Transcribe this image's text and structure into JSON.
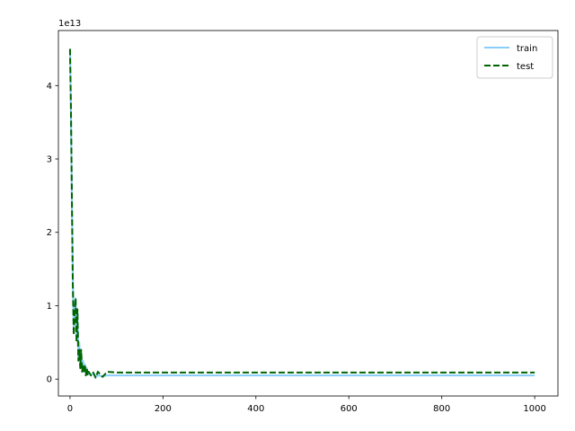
{
  "chart_data": {
    "type": "line",
    "title": "",
    "xlabel": "",
    "ylabel": "",
    "y_offset_label": "1e13",
    "y_scale": 10000000000000.0,
    "xlim": [
      -25,
      1050
    ],
    "ylim": [
      -2300000000000.0,
      47500000000000.0
    ],
    "x_ticks": [
      0,
      200,
      400,
      600,
      800,
      1000
    ],
    "x_tick_labels": [
      "0",
      "200",
      "400",
      "600",
      "800",
      "1000"
    ],
    "y_ticks": [
      0,
      10000000000000.0,
      20000000000000.0,
      30000000000000.0,
      40000000000000.0
    ],
    "y_tick_labels": [
      "0",
      "1",
      "2",
      "3",
      "4"
    ],
    "grid": false,
    "legend_position": "top-right",
    "series": [
      {
        "name": "train",
        "color": "#87cefa",
        "style": "solid",
        "x": [
          0,
          2,
          4,
          6,
          8,
          10,
          12,
          14,
          16,
          18,
          20,
          22,
          24,
          26,
          28,
          30,
          32,
          34,
          36,
          38,
          40,
          45,
          50,
          55,
          60,
          70,
          80,
          100,
          150,
          200,
          250,
          300,
          350,
          400,
          450,
          500,
          550,
          600,
          650,
          700,
          750,
          800,
          850,
          900,
          950,
          1000
        ],
        "y": [
          45000000000000.0,
          36000000000000.0,
          24000000000000.0,
          14000000000000.0,
          7000000000000.0,
          10000000000000.0,
          11000000000000.0,
          6000000000000.0,
          9000000000000.0,
          3000000000000.0,
          5000000000000.0,
          2000000000000.0,
          3500000000000.0,
          1500000000000.0,
          2500000000000.0,
          1000000000000.0,
          2000000000000.0,
          800000000000.0,
          1500000000000.0,
          600000000000.0,
          1000000000000.0,
          500000000000.0,
          800000000000.0,
          300000000000.0,
          500000000000.0,
          400000000000.0,
          500000000000.0,
          500000000000.0,
          500000000000.0,
          500000000000.0,
          500000000000.0,
          500000000000.0,
          500000000000.0,
          500000000000.0,
          500000000000.0,
          500000000000.0,
          500000000000.0,
          500000000000.0,
          500000000000.0,
          500000000000.0,
          500000000000.0,
          500000000000.0,
          500000000000.0,
          500000000000.0,
          500000000000.0,
          500000000000.0
        ]
      },
      {
        "name": "test",
        "color": "#006400",
        "style": "dashed",
        "x": [
          0,
          2,
          4,
          6,
          8,
          10,
          12,
          14,
          16,
          18,
          20,
          22,
          24,
          26,
          28,
          30,
          32,
          34,
          36,
          38,
          40,
          45,
          50,
          55,
          60,
          70,
          80,
          100,
          150,
          200,
          250,
          300,
          350,
          400,
          450,
          500,
          550,
          600,
          650,
          700,
          750,
          800,
          850,
          900,
          950,
          1000
        ],
        "y": [
          45000000000000.0,
          37000000000000.0,
          25000000000000.0,
          13000000000000.0,
          6000000000000.0,
          9000000000000.0,
          11000000000000.0,
          5000000000000.0,
          9500000000000.0,
          2500000000000.0,
          4000000000000.0,
          1500000000000.0,
          4000000000000.0,
          1000000000000.0,
          2000000000000.0,
          800000000000.0,
          2000000000000.0,
          500000000000.0,
          1500000000000.0,
          500000000000.0,
          1000000000000.0,
          500000000000.0,
          900000000000.0,
          200000000000.0,
          1000000000000.0,
          300000000000.0,
          1000000000000.0,
          900000000000.0,
          900000000000.0,
          900000000000.0,
          900000000000.0,
          900000000000.0,
          900000000000.0,
          900000000000.0,
          900000000000.0,
          900000000000.0,
          900000000000.0,
          900000000000.0,
          900000000000.0,
          900000000000.0,
          900000000000.0,
          900000000000.0,
          900000000000.0,
          900000000000.0,
          900000000000.0,
          900000000000.0
        ]
      }
    ]
  }
}
